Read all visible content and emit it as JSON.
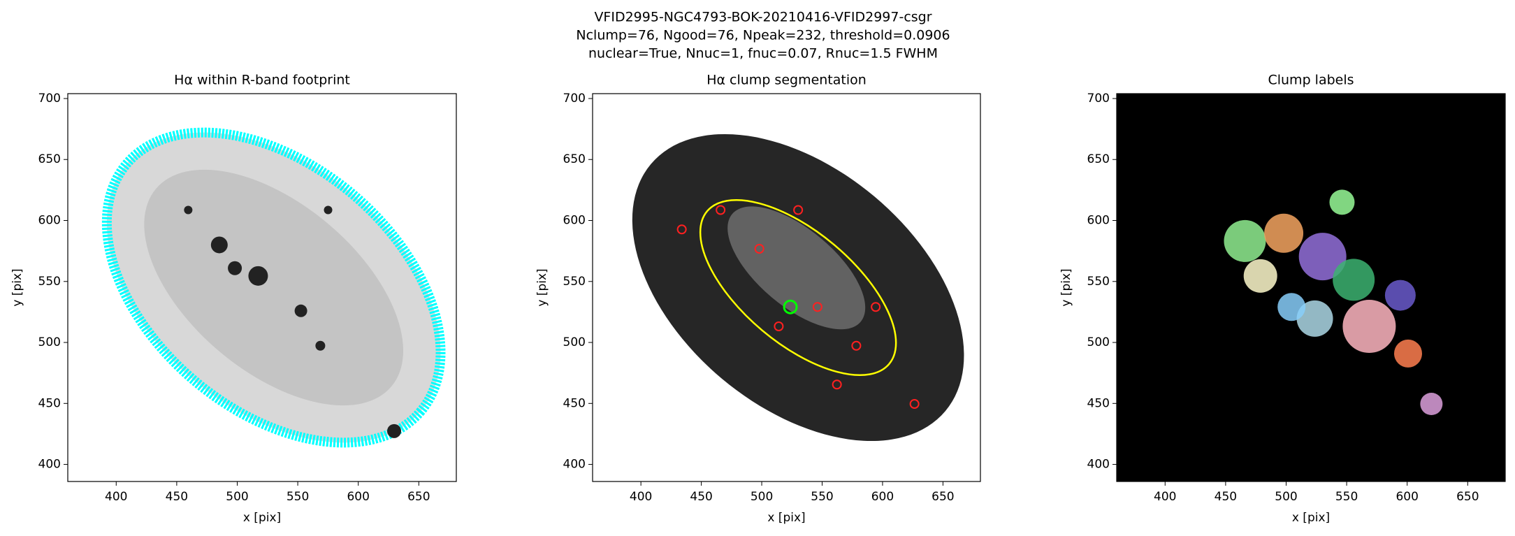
{
  "suptitle": [
    "VFID2995-NGC4793-BOK-20210416-VFID2997-csgr",
    "Nclump=76, Ngood=76, Npeak=232, threshold=0.0906",
    "nuclear=True, Nnuc=1, fnuc=0.07, Rnuc=1.5 FWHM"
  ],
  "chart_data": [
    {
      "type": "image",
      "title": "Hα within R-band footprint",
      "xlabel": "x [pix]",
      "ylabel": "y [pix]",
      "xlim": [
        360,
        681
      ],
      "ylim": [
        386,
        704
      ],
      "xticks": [
        400,
        450,
        500,
        550,
        600,
        650
      ],
      "yticks": [
        400,
        450,
        500,
        550,
        600,
        650,
        700
      ]
    },
    {
      "type": "image",
      "title": "Hα clump segmentation",
      "xlabel": "x [pix]",
      "ylabel": "y [pix]",
      "xlim": [
        360,
        681
      ],
      "ylim": [
        386,
        704
      ],
      "xticks": [
        400,
        450,
        500,
        550,
        600,
        650
      ],
      "yticks": [
        400,
        450,
        500,
        550,
        600,
        650,
        700
      ]
    },
    {
      "type": "image",
      "title": "Clump labels",
      "xlabel": "x [pix]",
      "ylabel": "y [pix]",
      "xlim": [
        360,
        681
      ],
      "ylim": [
        386,
        704
      ],
      "xticks": [
        400,
        450,
        500,
        550,
        600,
        650
      ],
      "yticks": [
        400,
        450,
        500,
        550,
        600,
        650,
        700
      ]
    }
  ]
}
